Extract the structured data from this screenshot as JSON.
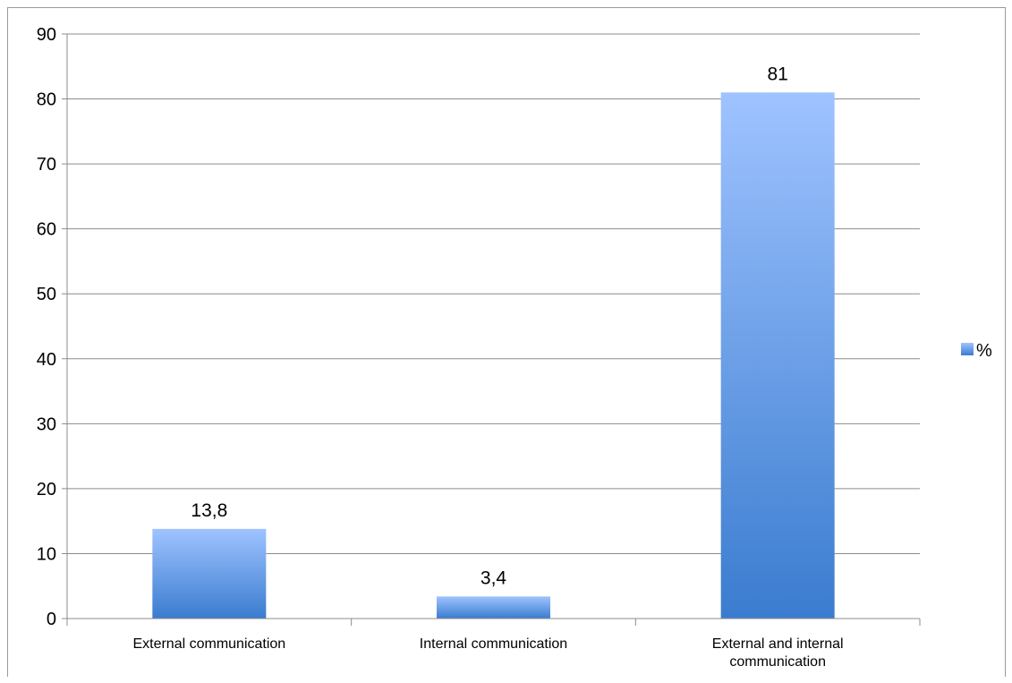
{
  "chart_data": {
    "type": "bar",
    "categories": [
      "External communication",
      "Internal communication",
      "External and internal communication"
    ],
    "series": [
      {
        "name": "%",
        "values": [
          13.8,
          3.4,
          81
        ]
      }
    ],
    "data_labels": [
      "13,8",
      "3,4",
      "81"
    ],
    "ylim": [
      0,
      90
    ],
    "yticks": [
      0,
      10,
      20,
      30,
      40,
      50,
      60,
      70,
      80,
      90
    ],
    "grid": true,
    "legend": "right",
    "colors": {
      "bar_top": "#9fc3ff",
      "bar_bottom": "#3a7ccf",
      "grid": "#8c8c8c"
    }
  }
}
